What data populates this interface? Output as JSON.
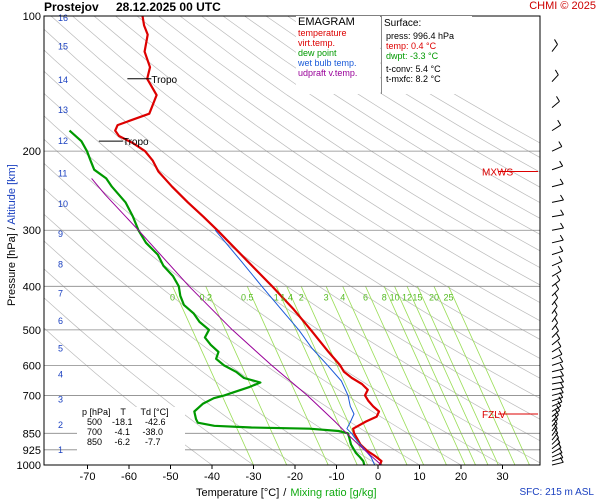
{
  "header": {
    "station": "Prostejov",
    "datetime": "28.12.2025 00 UTC",
    "credit": "CHMI © 2025"
  },
  "legend": {
    "title": "EMAGRAM",
    "items": [
      {
        "label": "temperature",
        "color": "#dd0000"
      },
      {
        "label": "virt.temp.",
        "color": "#dd0000"
      },
      {
        "label": "dew point",
        "color": "#009900"
      },
      {
        "label": "wet bulb temp.",
        "color": "#1a5ad8"
      },
      {
        "label": "udpraft v.temp.",
        "color": "#990099"
      }
    ]
  },
  "surface": {
    "title": "Surface:",
    "press": "press: 996.4 hPa",
    "temp": "temp: 0.4 °C",
    "dwpt": "dwpt: -3.3 °C",
    "tconv": "t-conv: 5.4 °C",
    "tmxfc": "t-mxfc: 8.2 °C"
  },
  "table": {
    "header": "  p [hPa]    T      Td [°C]",
    "rows": [
      "    500    -18.1     -42.6",
      "    700     -4.1     -38.0",
      "    850     -6.2      -7.7"
    ]
  },
  "axis_labels": {
    "x_temp": "Temperature [°C]",
    "x_sep": "/",
    "x_mix": "Mixing ratio [g/kg]",
    "y_pres": "Pressure [hPa]",
    "y_sep": "/",
    "y_alt": "Altitude [km]"
  },
  "sfc_note": "SFC: 215 m ASL",
  "colors": {
    "temperature": "#dd0000",
    "dew_point": "#009900",
    "wet_bulb": "#1a5ad8",
    "parcel": "#990099",
    "mixing_ratio": "#99dd55",
    "dry_adiabat": "#bbbbbb",
    "isobar": "#888888"
  },
  "chart_data": {
    "type": "line",
    "title": "EMAGRAM",
    "xlabel": "Temperature [°C] / Mixing ratio [g/kg]",
    "ylabel": "Pressure [hPa] / Altitude [km]",
    "xlim": [
      -80,
      35
    ],
    "ylim": [
      1000,
      100
    ],
    "y_log": true,
    "grid": true,
    "temp_ticks": [
      -70,
      -60,
      -50,
      -40,
      -30,
      -20,
      -10,
      0,
      10,
      20,
      30
    ],
    "pressure_ticks": [
      100,
      200,
      300,
      400,
      500,
      600,
      700,
      850,
      925,
      1000
    ],
    "altitude_ticks": [
      1,
      2,
      3,
      4,
      5,
      6,
      7,
      8,
      9,
      10,
      11,
      12,
      13,
      14,
      15,
      16
    ],
    "altitude_pressures": [
      925,
      815,
      715,
      628,
      550,
      478,
      415,
      358,
      306,
      262,
      224,
      190,
      162,
      139,
      117,
      101
    ],
    "mixing_ratio_labels": [
      "0",
      "0.2",
      "0.5",
      "1",
      "1.4",
      "2",
      "3",
      "4",
      "6",
      "8",
      "10",
      "12",
      "15",
      "20",
      "25"
    ],
    "mixing_ratio_label_temps": [
      -52,
      -44,
      -34,
      -27,
      -24.5,
      -21,
      -15,
      -11,
      -5.5,
      -1,
      1.5,
      4.5,
      7,
      11,
      14.5
    ],
    "annotations": [
      {
        "text": "Tropo",
        "p": 138,
        "t": -60
      },
      {
        "text": "Tropo",
        "p": 190,
        "t": -66
      },
      {
        "text": "MXWS",
        "p": 222,
        "t": 28
      },
      {
        "text": "FZLV",
        "p": 770,
        "t": 28
      }
    ],
    "series": [
      {
        "name": "temperature",
        "points": [
          [
            1000,
            0.4
          ],
          [
            980,
            0.8
          ],
          [
            960,
            -0.5
          ],
          [
            950,
            -1.2
          ],
          [
            930,
            -2.8
          ],
          [
            900,
            -4.5
          ],
          [
            870,
            -5.5
          ],
          [
            850,
            -6.2
          ],
          [
            830,
            -6.5
          ],
          [
            800,
            -3.5
          ],
          [
            780,
            -1.0
          ],
          [
            760,
            -0.5
          ],
          [
            740,
            -2.0
          ],
          [
            720,
            -3.2
          ],
          [
            700,
            -4.1
          ],
          [
            680,
            -3.5
          ],
          [
            660,
            -5.0
          ],
          [
            640,
            -7.5
          ],
          [
            620,
            -9.5
          ],
          [
            600,
            -10.5
          ],
          [
            560,
            -13.5
          ],
          [
            500,
            -18.1
          ],
          [
            450,
            -22.5
          ],
          [
            400,
            -28.0
          ],
          [
            350,
            -34.5
          ],
          [
            300,
            -42.0
          ],
          [
            280,
            -45.5
          ],
          [
            260,
            -49.5
          ],
          [
            240,
            -53.5
          ],
          [
            222,
            -57.0
          ],
          [
            210,
            -58.5
          ],
          [
            200,
            -60.5
          ],
          [
            192,
            -63.5
          ],
          [
            185,
            -67.0
          ],
          [
            180,
            -68.0
          ],
          [
            175,
            -67.5
          ],
          [
            165,
            -60.0
          ],
          [
            150,
            -58.5
          ],
          [
            138,
            -61.0
          ],
          [
            130,
            -60.5
          ],
          [
            120,
            -62.0
          ],
          [
            110,
            -61.5
          ],
          [
            105,
            -62.5
          ],
          [
            100,
            -63.0
          ]
        ]
      },
      {
        "name": "dew point",
        "points": [
          [
            1000,
            -3.3
          ],
          [
            980,
            -3.6
          ],
          [
            960,
            -4.5
          ],
          [
            940,
            -5.5
          ],
          [
            900,
            -6.8
          ],
          [
            870,
            -7.3
          ],
          [
            850,
            -7.7
          ],
          [
            840,
            -10.0
          ],
          [
            830,
            -17.0
          ],
          [
            825,
            -31.0
          ],
          [
            818,
            -40.0
          ],
          [
            805,
            -44.0
          ],
          [
            790,
            -44.5
          ],
          [
            760,
            -45.0
          ],
          [
            730,
            -43.0
          ],
          [
            710,
            -40.5
          ],
          [
            700,
            -38.0
          ],
          [
            690,
            -36.0
          ],
          [
            670,
            -32.0
          ],
          [
            655,
            -29.5
          ],
          [
            640,
            -33.5
          ],
          [
            620,
            -35.5
          ],
          [
            600,
            -38.5
          ],
          [
            580,
            -40.5
          ],
          [
            560,
            -40.0
          ],
          [
            540,
            -42.0
          ],
          [
            520,
            -43.5
          ],
          [
            500,
            -42.6
          ],
          [
            480,
            -45.0
          ],
          [
            460,
            -46.5
          ],
          [
            440,
            -49.0
          ],
          [
            420,
            -50.0
          ],
          [
            400,
            -50.5
          ],
          [
            380,
            -52.0
          ],
          [
            360,
            -54.5
          ],
          [
            340,
            -56.0
          ],
          [
            320,
            -59.0
          ],
          [
            300,
            -61.0
          ],
          [
            280,
            -62.5
          ],
          [
            260,
            -64.5
          ],
          [
            240,
            -68.0
          ],
          [
            230,
            -69.5
          ],
          [
            220,
            -72.5
          ],
          [
            210,
            -73.5
          ],
          [
            200,
            -74.5
          ],
          [
            190,
            -76.0
          ],
          [
            180,
            -79.0
          ]
        ]
      },
      {
        "name": "wet bulb temp.",
        "points": [
          [
            1000,
            -0.8
          ],
          [
            960,
            -1.8
          ],
          [
            920,
            -3.6
          ],
          [
            870,
            -6.0
          ],
          [
            850,
            -6.8
          ],
          [
            830,
            -8.0
          ],
          [
            800,
            -7.2
          ],
          [
            770,
            -6.5
          ],
          [
            740,
            -7.5
          ],
          [
            700,
            -8.2
          ],
          [
            650,
            -10.0
          ],
          [
            600,
            -13.5
          ],
          [
            550,
            -17.5
          ],
          [
            500,
            -21.0
          ],
          [
            450,
            -25.5
          ],
          [
            400,
            -30.5
          ],
          [
            350,
            -36.0
          ],
          [
            300,
            -42.5
          ]
        ]
      },
      {
        "name": "udpraft v.temp.",
        "points": [
          [
            1000,
            0.8
          ],
          [
            900,
            -5.0
          ],
          [
            850,
            -8.0
          ],
          [
            800,
            -11.0
          ],
          [
            700,
            -18.0
          ],
          [
            600,
            -27.0
          ],
          [
            500,
            -37.0
          ],
          [
            400,
            -48.0
          ],
          [
            300,
            -61.0
          ],
          [
            250,
            -69.5
          ],
          [
            230,
            -73.0
          ]
        ]
      }
    ]
  }
}
